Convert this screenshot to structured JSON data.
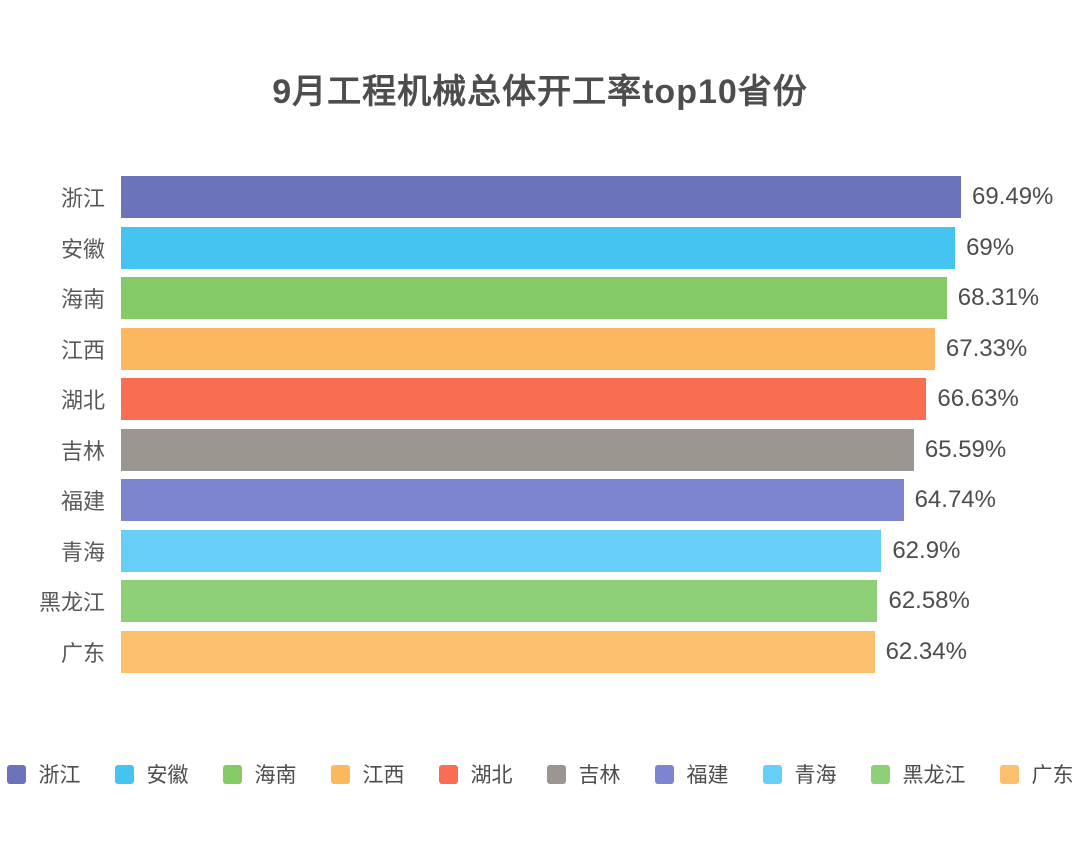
{
  "page": {
    "background_color": "#ffffff"
  },
  "chart_data": {
    "type": "bar",
    "orientation": "horizontal",
    "title": "9月工程机械总体开工率top10省份",
    "xlabel": "",
    "ylabel": "",
    "grid": false,
    "xlim": [
      0,
      69.49
    ],
    "categories": [
      "浙江",
      "安徽",
      "海南",
      "江西",
      "湖北",
      "吉林",
      "福建",
      "青海",
      "黑龙江",
      "广东"
    ],
    "values": [
      69.49,
      69,
      68.31,
      67.33,
      66.63,
      65.59,
      64.74,
      62.9,
      62.58,
      62.34
    ],
    "value_labels": [
      "69.49%",
      "69%",
      "68.31%",
      "67.33%",
      "66.63%",
      "65.59%",
      "64.74%",
      "62.9%",
      "62.58%",
      "62.34%"
    ],
    "colors": [
      "#6C73BB",
      "#45C3F1",
      "#84CB67",
      "#FBB85E",
      "#F96D53",
      "#9B968F",
      "#7D85CE",
      "#67CFF7",
      "#8DD078",
      "#FBBF6D"
    ],
    "title_color": "#4d4d4d",
    "label_color": "#595959",
    "value_color": "#4d4d4d",
    "legend": {
      "position": "bottom",
      "entries": [
        "浙江",
        "安徽",
        "海南",
        "江西",
        "湖北",
        "吉林",
        "福建",
        "青海",
        "黑龙江",
        "广东"
      ]
    }
  }
}
